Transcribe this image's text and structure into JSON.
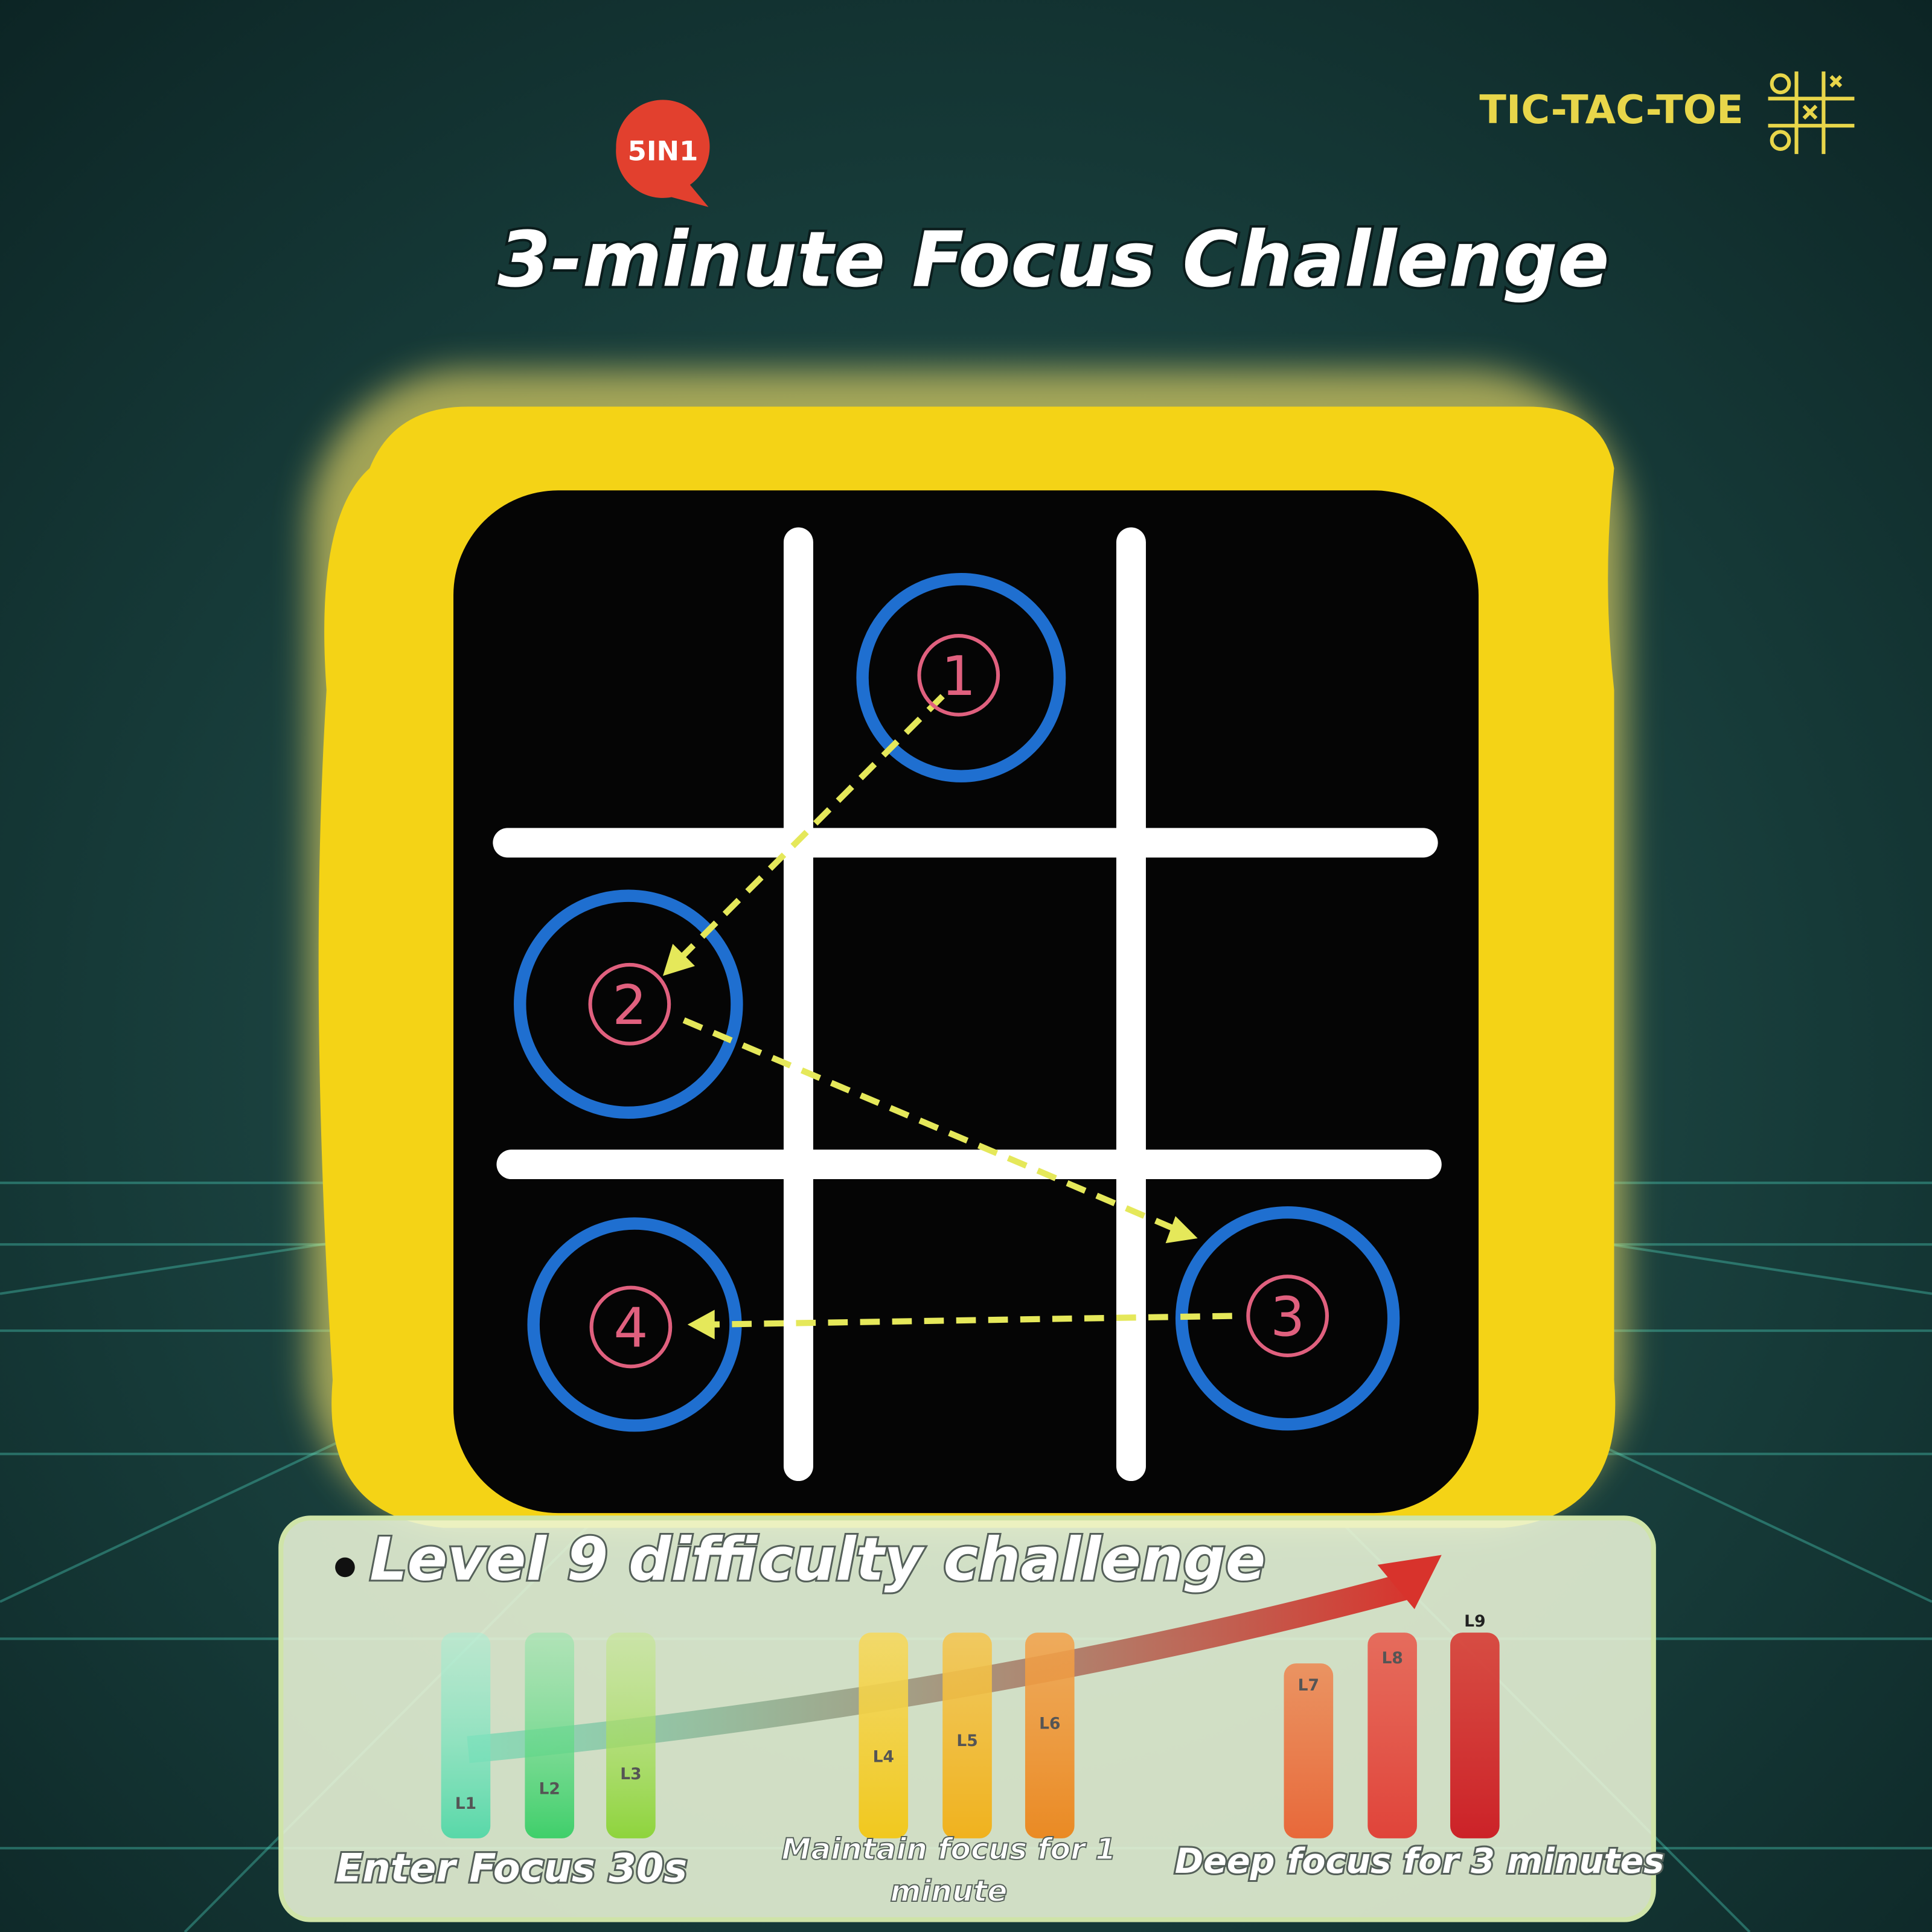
{
  "badge": "5IN1",
  "brand": {
    "name": "TIC-TAC-TOE"
  },
  "title": "3-minute Focus Challenge",
  "board": {
    "steps": [
      "1",
      "2",
      "3",
      "4"
    ]
  },
  "panel": {
    "heading": "Level 9 difficulty challenge",
    "groups": [
      {
        "caption": "Enter Focus 30s",
        "levels": [
          "L1",
          "L2",
          "L3"
        ]
      },
      {
        "caption": "Maintain focus for 1 minute",
        "levels": [
          "L4",
          "L5",
          "L6"
        ]
      },
      {
        "caption": "Deep focus for 3 minutes",
        "levels": [
          "L7",
          "L8",
          "L9"
        ]
      }
    ]
  }
}
